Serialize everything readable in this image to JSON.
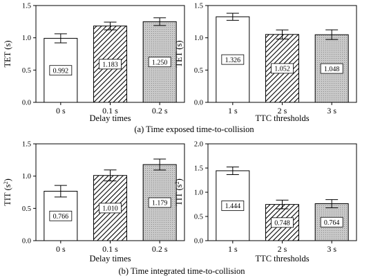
{
  "captions": {
    "a": "(a) Time exposed time-to-collision",
    "b": "(b) Time integrated time-to-collision"
  },
  "chart_data": [
    {
      "type": "bar",
      "panel": "a-left",
      "categories": [
        "0 s",
        "0.1 s",
        "0.2 s"
      ],
      "values": [
        0.992,
        1.183,
        1.25
      ],
      "value_labels": [
        "0.992",
        "1.183",
        "1.250"
      ],
      "error": [
        0.07,
        0.06,
        0.06
      ],
      "fills": [
        "white",
        "hatch",
        "dots"
      ],
      "xlabel": "Delay times",
      "ylabel": "TET (s)",
      "ylim": [
        0,
        1.5
      ],
      "yticks": [
        "0.0",
        "0.5",
        "1.0",
        "1.5"
      ],
      "grid": false
    },
    {
      "type": "bar",
      "panel": "a-right",
      "categories": [
        "1 s",
        "2 s",
        "3 s"
      ],
      "values": [
        1.326,
        1.052,
        1.048
      ],
      "value_labels": [
        "1.326",
        "1.052",
        "1.048"
      ],
      "error": [
        0.055,
        0.07,
        0.075
      ],
      "fills": [
        "white",
        "hatch",
        "dots"
      ],
      "xlabel": "TTC thresholds",
      "ylabel": "TET (s)",
      "ylim": [
        0,
        1.5
      ],
      "yticks": [
        "0.0",
        "0.5",
        "1.0",
        "1.5"
      ],
      "grid": false
    },
    {
      "type": "bar",
      "panel": "b-left",
      "categories": [
        "0 s",
        "0.1 s",
        "0.2 s"
      ],
      "values": [
        0.766,
        1.01,
        1.179
      ],
      "value_labels": [
        "0.766",
        "1.010",
        "1.179"
      ],
      "error": [
        0.09,
        0.085,
        0.085
      ],
      "fills": [
        "white",
        "hatch",
        "dots"
      ],
      "xlabel": "Delay times",
      "ylabel": "TIT (s",
      "ylabel_sup": "2",
      "ylabel_end": ")",
      "ylim": [
        0,
        1.5
      ],
      "yticks": [
        "0.0",
        "0.5",
        "1.0",
        "1.5"
      ],
      "grid": false
    },
    {
      "type": "bar",
      "panel": "b-right",
      "categories": [
        "1 s",
        "2 s",
        "3 s"
      ],
      "values": [
        1.444,
        0.748,
        0.764
      ],
      "value_labels": [
        "1.444",
        "0.748",
        "0.764"
      ],
      "error": [
        0.08,
        0.09,
        0.085
      ],
      "fills": [
        "white",
        "hatch",
        "dots"
      ],
      "xlabel": "TTC thresholds",
      "ylabel": "TIT (s",
      "ylabel_sup": "2",
      "ylabel_end": ")",
      "ylim": [
        0,
        2.0
      ],
      "yticks": [
        "0.0",
        "0.5",
        "1.0",
        "1.5",
        "2.0"
      ],
      "grid": false
    }
  ]
}
